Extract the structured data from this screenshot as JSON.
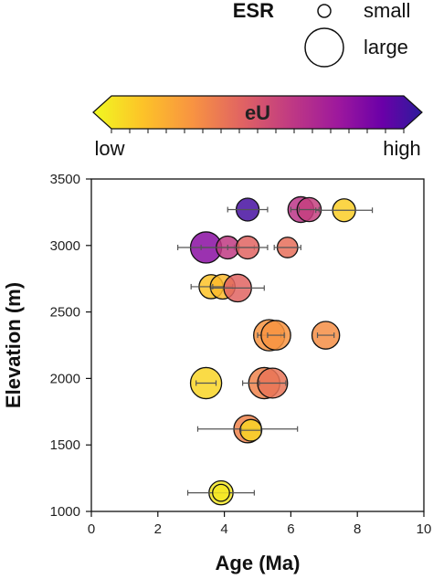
{
  "chart_data": {
    "type": "scatter",
    "title": "",
    "xlabel": "Age (Ma)",
    "ylabel": "Elevation (m)",
    "xlim": [
      0,
      10
    ],
    "ylim": [
      1000,
      3500
    ],
    "x_ticks": [
      "0",
      "2",
      "4",
      "6",
      "8",
      "10"
    ],
    "y_ticks": [
      "1000",
      "1500",
      "2000",
      "2500",
      "3000",
      "3500"
    ],
    "grid": false,
    "size_legend": {
      "title": "ESR",
      "entries": [
        {
          "label": "small",
          "size": "small"
        },
        {
          "label": "large",
          "size": "large"
        }
      ],
      "placement": "top-right, outside plot"
    },
    "colorbar": {
      "label": "eU",
      "low_label": "low",
      "high_label": "high",
      "colormap": "plasma-reversed (yellow to purple)",
      "orientation": "horizontal",
      "placement": "above plot"
    },
    "points": [
      {
        "x": 4.7,
        "y": 3270,
        "err": 0.6,
        "esr": 0.5,
        "eu": 0.95
      },
      {
        "x": 6.3,
        "y": 3270,
        "err": 0.3,
        "esr": 0.62,
        "eu": 0.62
      },
      {
        "x": 6.55,
        "y": 3270,
        "err": 0.3,
        "esr": 0.55,
        "eu": 0.58
      },
      {
        "x": 7.6,
        "y": 3265,
        "err": 0.85,
        "esr": 0.5,
        "eu": 0.12
      },
      {
        "x": 3.45,
        "y": 2985,
        "err": 0.85,
        "esr": 0.85,
        "eu": 0.8
      },
      {
        "x": 4.1,
        "y": 2985,
        "err": 0.8,
        "esr": 0.5,
        "eu": 0.6
      },
      {
        "x": 4.7,
        "y": 2985,
        "err": 0.6,
        "esr": 0.5,
        "eu": 0.45
      },
      {
        "x": 5.9,
        "y": 2985,
        "err": 0.4,
        "esr": 0.4,
        "eu": 0.42
      },
      {
        "x": 3.6,
        "y": 2690,
        "err": 0.6,
        "esr": 0.55,
        "eu": 0.15
      },
      {
        "x": 3.95,
        "y": 2690,
        "err": 0.3,
        "esr": 0.58,
        "eu": 0.18
      },
      {
        "x": 4.4,
        "y": 2680,
        "err": 0.8,
        "esr": 0.7,
        "eu": 0.45
      },
      {
        "x": 5.35,
        "y": 2325,
        "err": 0.35,
        "esr": 0.85,
        "eu": 0.3
      },
      {
        "x": 5.55,
        "y": 2325,
        "err": 0.25,
        "esr": 0.78,
        "eu": 0.3
      },
      {
        "x": 7.05,
        "y": 2325,
        "err": 0.25,
        "esr": 0.7,
        "eu": 0.32
      },
      {
        "x": 3.45,
        "y": 1965,
        "err": 0.3,
        "esr": 0.85,
        "eu": 0.1
      },
      {
        "x": 5.2,
        "y": 1965,
        "err": 0.65,
        "esr": 0.85,
        "eu": 0.35
      },
      {
        "x": 5.45,
        "y": 1965,
        "err": 0.4,
        "esr": 0.8,
        "eu": 0.4
      },
      {
        "x": 4.7,
        "y": 1620,
        "err": 1.5,
        "esr": 0.7,
        "eu": 0.35
      },
      {
        "x": 4.8,
        "y": 1610,
        "err": 0.3,
        "esr": 0.45,
        "eu": 0.1
      },
      {
        "x": 3.9,
        "y": 1140,
        "err": 1.0,
        "esr": 0.55,
        "eu": 0.05
      },
      {
        "x": 3.9,
        "y": 1140,
        "err": 0.0,
        "esr": 0.25,
        "eu": 0.05
      }
    ]
  }
}
